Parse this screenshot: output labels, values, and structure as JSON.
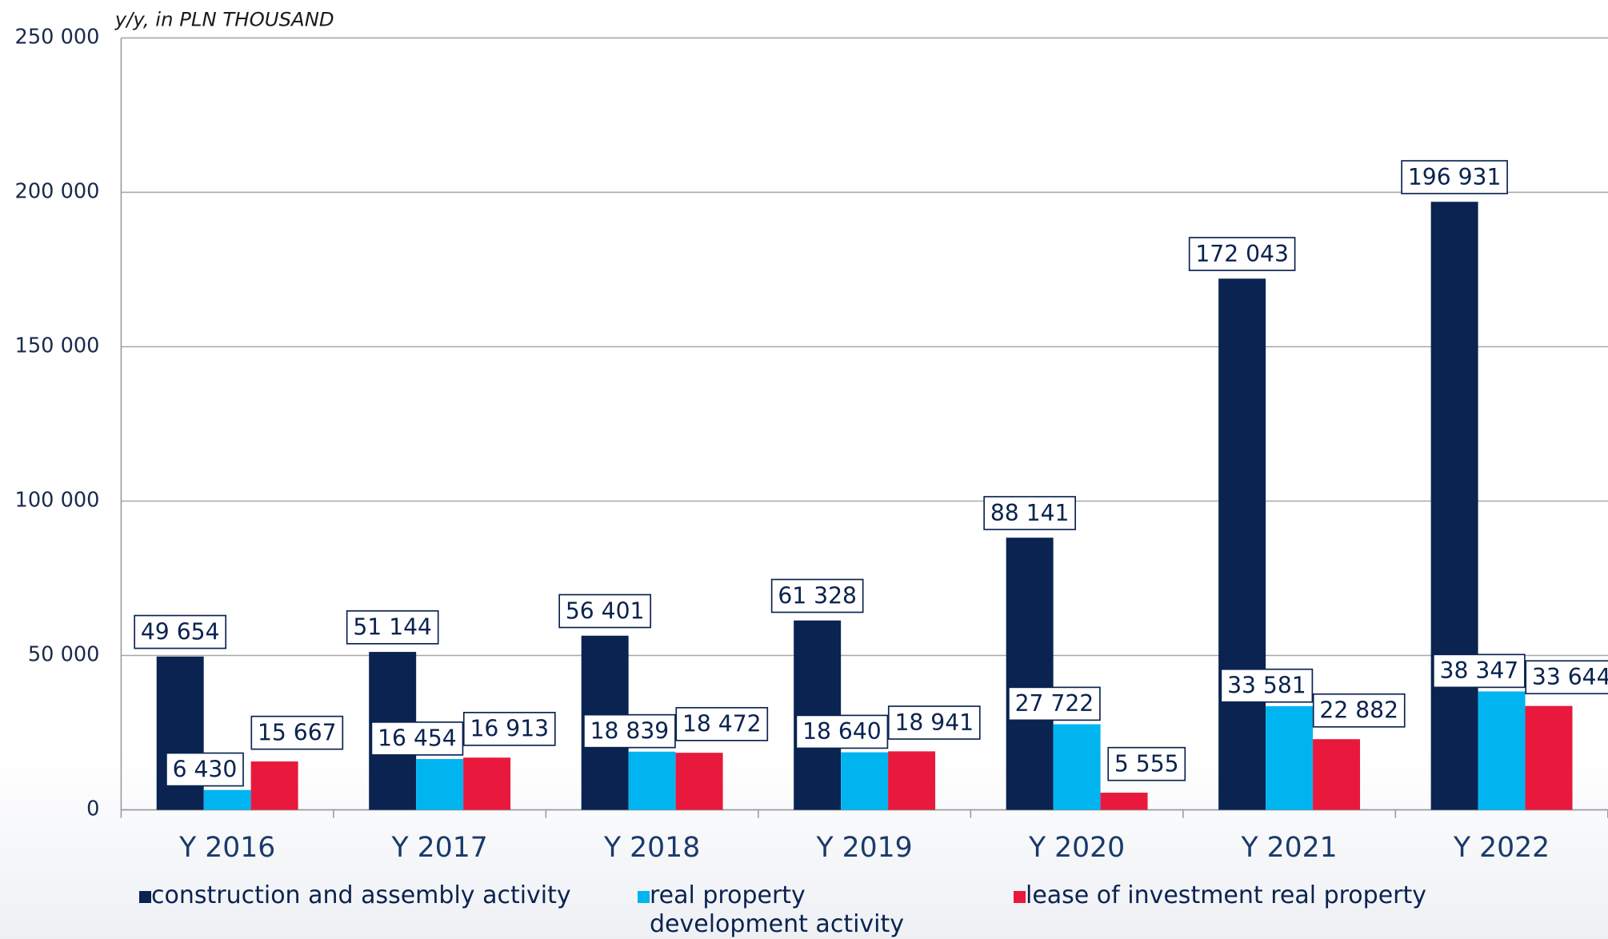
{
  "chart_data": {
    "type": "bar",
    "ylabel": "y/y, in PLN THOUSAND",
    "categories": [
      "Y 2016",
      "Y 2017",
      "Y 2018",
      "Y 2019",
      "Y 2020",
      "Y 2021",
      "Y 2022"
    ],
    "series": [
      {
        "name": "construction and assembly activity",
        "color": "#0a2350",
        "values": [
          49654,
          51144,
          56401,
          61328,
          88141,
          172043,
          196931
        ],
        "value_labels": [
          "49 654",
          "51 144",
          "56 401",
          "61 328",
          "88 141",
          "172 043",
          "196 931"
        ]
      },
      {
        "name": "real property development activity",
        "color": "#00b4f0",
        "values": [
          6430,
          16454,
          18839,
          18640,
          27722,
          33581,
          38347
        ],
        "value_labels": [
          "6 430",
          "16 454",
          "18 839",
          "18 640",
          "27 722",
          "33 581",
          "38 347"
        ]
      },
      {
        "name": "lease of investment real property",
        "color": "#e8193c",
        "values": [
          15667,
          16913,
          18472,
          18941,
          5555,
          22882,
          33644
        ],
        "value_labels": [
          "15 667",
          "16 913",
          "18 472",
          "18 941",
          "5 555",
          "22 882",
          "33 644"
        ]
      }
    ],
    "ylim": [
      0,
      250000
    ],
    "yticks": [
      0,
      {
        "value": 50000,
        "label": "50 000"
      },
      {
        "value": 100000,
        "label": "100 000"
      },
      {
        "value": 150000,
        "label": "150 000"
      },
      {
        "value": 200000,
        "label": "200 000"
      },
      {
        "value": 250000,
        "label": "250 000"
      }
    ],
    "grid": true,
    "legend": "bottom"
  }
}
